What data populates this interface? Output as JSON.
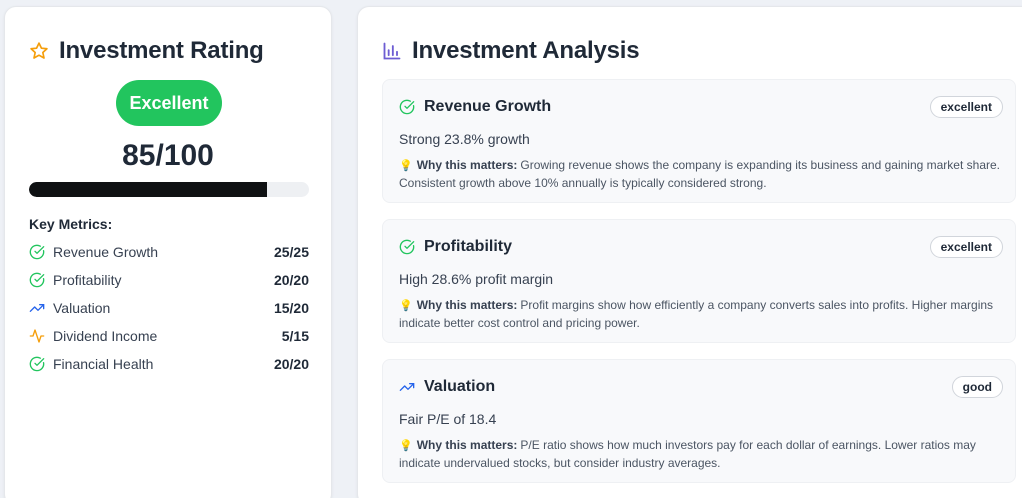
{
  "rating": {
    "title": "Investment Rating",
    "badge": "Excellent",
    "score": "85/100",
    "progress_fraction": 0.85,
    "metrics_title": "Key Metrics:",
    "metrics": [
      {
        "label": "Revenue Growth",
        "value": "25/25",
        "icon": "check-circle-icon"
      },
      {
        "label": "Profitability",
        "value": "20/20",
        "icon": "check-circle-icon"
      },
      {
        "label": "Valuation",
        "value": "15/20",
        "icon": "trending-up-icon"
      },
      {
        "label": "Dividend Income",
        "value": "5/15",
        "icon": "activity-icon"
      },
      {
        "label": "Financial Health",
        "value": "20/20",
        "icon": "check-circle-icon"
      }
    ]
  },
  "analysis": {
    "title": "Investment Analysis",
    "why_label": "Why this matters:",
    "items": [
      {
        "title": "Revenue Growth",
        "badge": "excellent",
        "desc": "Strong 23.8% growth",
        "why": "Growing revenue shows the company is expanding its business and gaining market share. Consistent growth above 10% annually is typically considered strong.",
        "icon": "check-circle-icon"
      },
      {
        "title": "Profitability",
        "badge": "excellent",
        "desc": "High 28.6% profit margin",
        "why": "Profit margins show how efficiently a company converts sales into profits. Higher margins indicate better cost control and pricing power.",
        "icon": "check-circle-icon"
      },
      {
        "title": "Valuation",
        "badge": "good",
        "desc": "Fair P/E of 18.4",
        "why": "P/E ratio shows how much investors pay for each dollar of earnings. Lower ratios may indicate undervalued stocks, but consider industry averages.",
        "icon": "trending-up-icon"
      }
    ]
  },
  "colors": {
    "green": "#22c55e",
    "blue": "#2563eb",
    "amber": "#f59e0b",
    "purple": "#6d5dd3",
    "progress": "#0f1113"
  }
}
